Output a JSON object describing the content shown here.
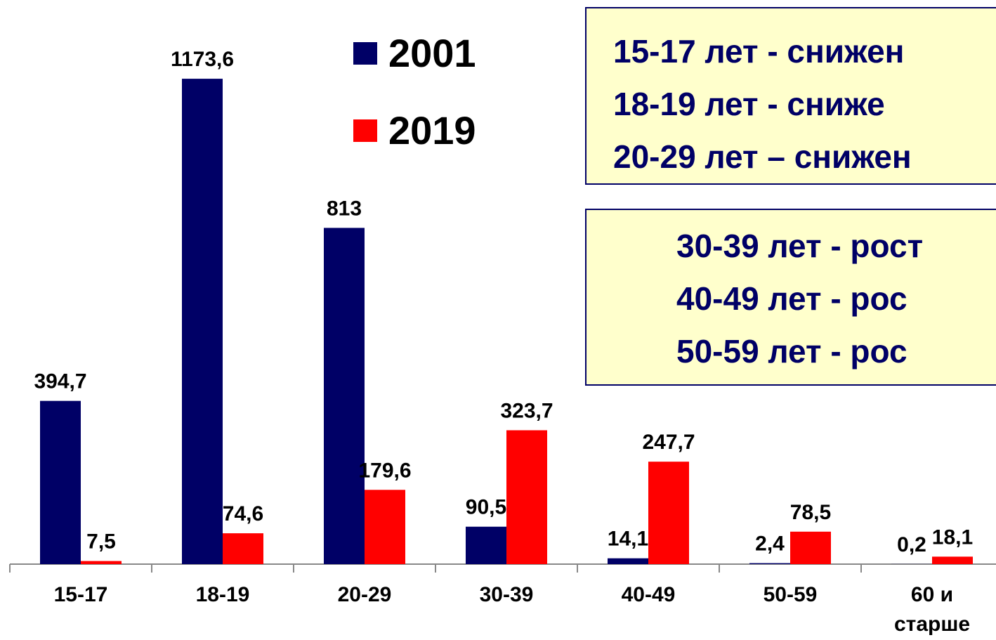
{
  "chart_data": {
    "type": "bar",
    "categories": [
      "15-17",
      "18-19",
      "20-29",
      "30-39",
      "40-49",
      "50-59",
      "60 и старше"
    ],
    "series": [
      {
        "name": "2001",
        "color": "#000066",
        "values": [
          394.7,
          1173.6,
          813,
          90.5,
          14.1,
          2.4,
          0.2
        ],
        "value_labels": [
          "394,7",
          "1173,6",
          "813",
          "90,5",
          "14,1",
          "2,4",
          "0,2"
        ]
      },
      {
        "name": "2019",
        "color": "#ff0000",
        "values": [
          7.5,
          74.6,
          179.6,
          323.7,
          247.7,
          78.5,
          18.1
        ],
        "value_labels": [
          "7,5",
          "74,6",
          "179,6",
          "323,7",
          "247,7",
          "78,5",
          "18,1"
        ]
      }
    ],
    "ylim": [
      0,
      1364
    ],
    "annotations": [
      [
        "15-17 лет - снижен",
        "18-19 лет - сниже",
        "20-29 лет – снижен"
      ],
      [
        "30-39 лет - рост",
        "40-49 лет - рос",
        "50-59 лет - рос"
      ]
    ]
  }
}
